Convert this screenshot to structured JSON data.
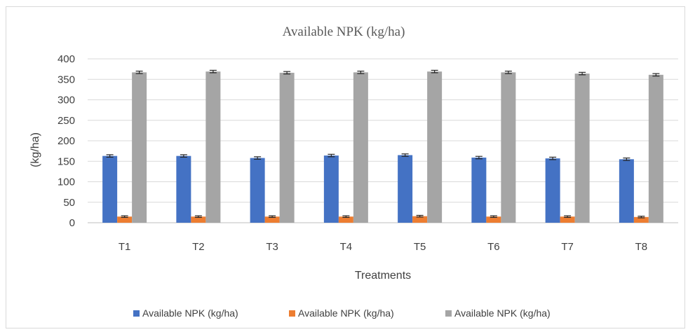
{
  "chart_data": {
    "type": "bar",
    "title": "Available NPK (kg/ha)",
    "xlabel": "Treatments",
    "ylabel": "(kg/ha)",
    "categories": [
      "T1",
      "T2",
      "T3",
      "T4",
      "T5",
      "T6",
      "T7",
      "T8"
    ],
    "ylim": [
      0,
      400
    ],
    "yticks": [
      0,
      50,
      100,
      150,
      200,
      250,
      300,
      350,
      400
    ],
    "grid": true,
    "legend_position": "bottom",
    "error_bars": true,
    "series": [
      {
        "name": "Available NPK (kg/ha)",
        "color": "#4472c4",
        "values": [
          163,
          163,
          158,
          164,
          165,
          159,
          157,
          155
        ],
        "errors": [
          3,
          3,
          3,
          3,
          3,
          3,
          3,
          3
        ]
      },
      {
        "name": "Available NPK (kg/ha)",
        "color": "#ed7d31",
        "values": [
          15,
          15,
          15,
          15,
          16,
          15,
          15,
          14
        ],
        "errors": [
          2,
          2,
          2,
          2,
          2,
          2,
          2,
          2
        ]
      },
      {
        "name": "Available NPK (kg/ha)",
        "color": "#a5a5a5",
        "values": [
          367,
          369,
          366,
          367,
          369,
          367,
          364,
          361
        ],
        "errors": [
          3,
          3,
          3,
          3,
          3,
          3,
          3,
          3
        ]
      }
    ]
  }
}
